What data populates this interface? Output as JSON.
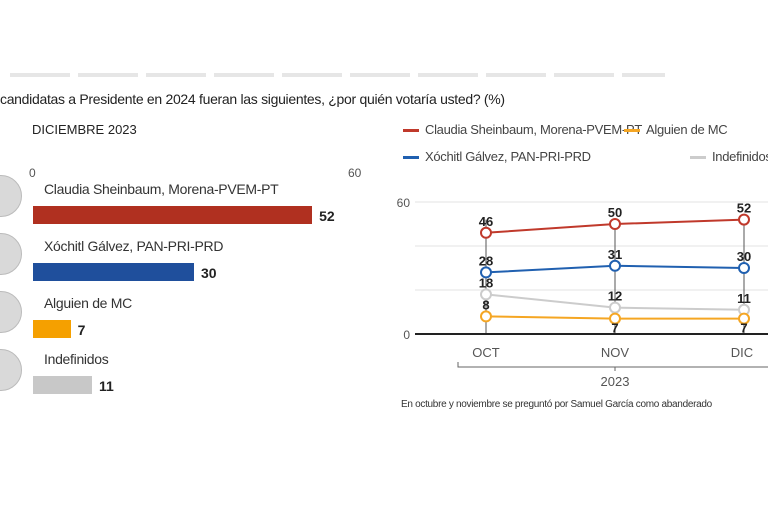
{
  "question": "candidatas a Presidente en 2024 fueran las siguientes, ¿por quién votaría usted?  (%)",
  "chart_data": [
    {
      "type": "bar",
      "title": "DICIEMBRE 2023",
      "xlim": [
        0,
        60
      ],
      "ticks": [
        "0",
        "60"
      ],
      "categories": [
        "Claudia Sheinbaum, Morena-PVEM-PT",
        "Xóchitl Gálvez, PAN-PRI-PRD",
        "Alguien de MC",
        "Indefinidos"
      ],
      "values": [
        52,
        30,
        7,
        11
      ],
      "colors": [
        "#b03020",
        "#1f4f9c",
        "#f5a000",
        "#c8c8c8"
      ],
      "value_labels": [
        "52",
        "30",
        "7",
        "11"
      ]
    },
    {
      "type": "line",
      "categories": [
        "OCT",
        "NOV",
        "DIC"
      ],
      "xgroup_label": "2023",
      "ylim": [
        0,
        60
      ],
      "yticks": [
        "0",
        "60"
      ],
      "grid": true,
      "legend": "top",
      "series": [
        {
          "name": "Claudia Sheinbaum, Morena-PVEM-PT",
          "color": "#c0392b",
          "values": [
            46,
            50,
            52
          ],
          "labels": [
            "46",
            "50",
            "52"
          ]
        },
        {
          "name": "Xóchitl Gálvez, PAN-PRI-PRD",
          "color": "#2060b0",
          "values": [
            28,
            31,
            30
          ],
          "labels": [
            "28",
            "31",
            "30"
          ]
        },
        {
          "name": "Alguien de MC",
          "color": "#f5a623",
          "values": [
            8,
            7,
            7
          ],
          "labels": [
            "8",
            "7",
            "7"
          ]
        },
        {
          "name": "Indefinidos",
          "color": "#cccccc",
          "values": [
            18,
            12,
            11
          ],
          "labels": [
            "18",
            "12",
            "11"
          ]
        }
      ],
      "note": "En octubre y noviembre se preguntó por Samuel García como abanderado"
    }
  ]
}
